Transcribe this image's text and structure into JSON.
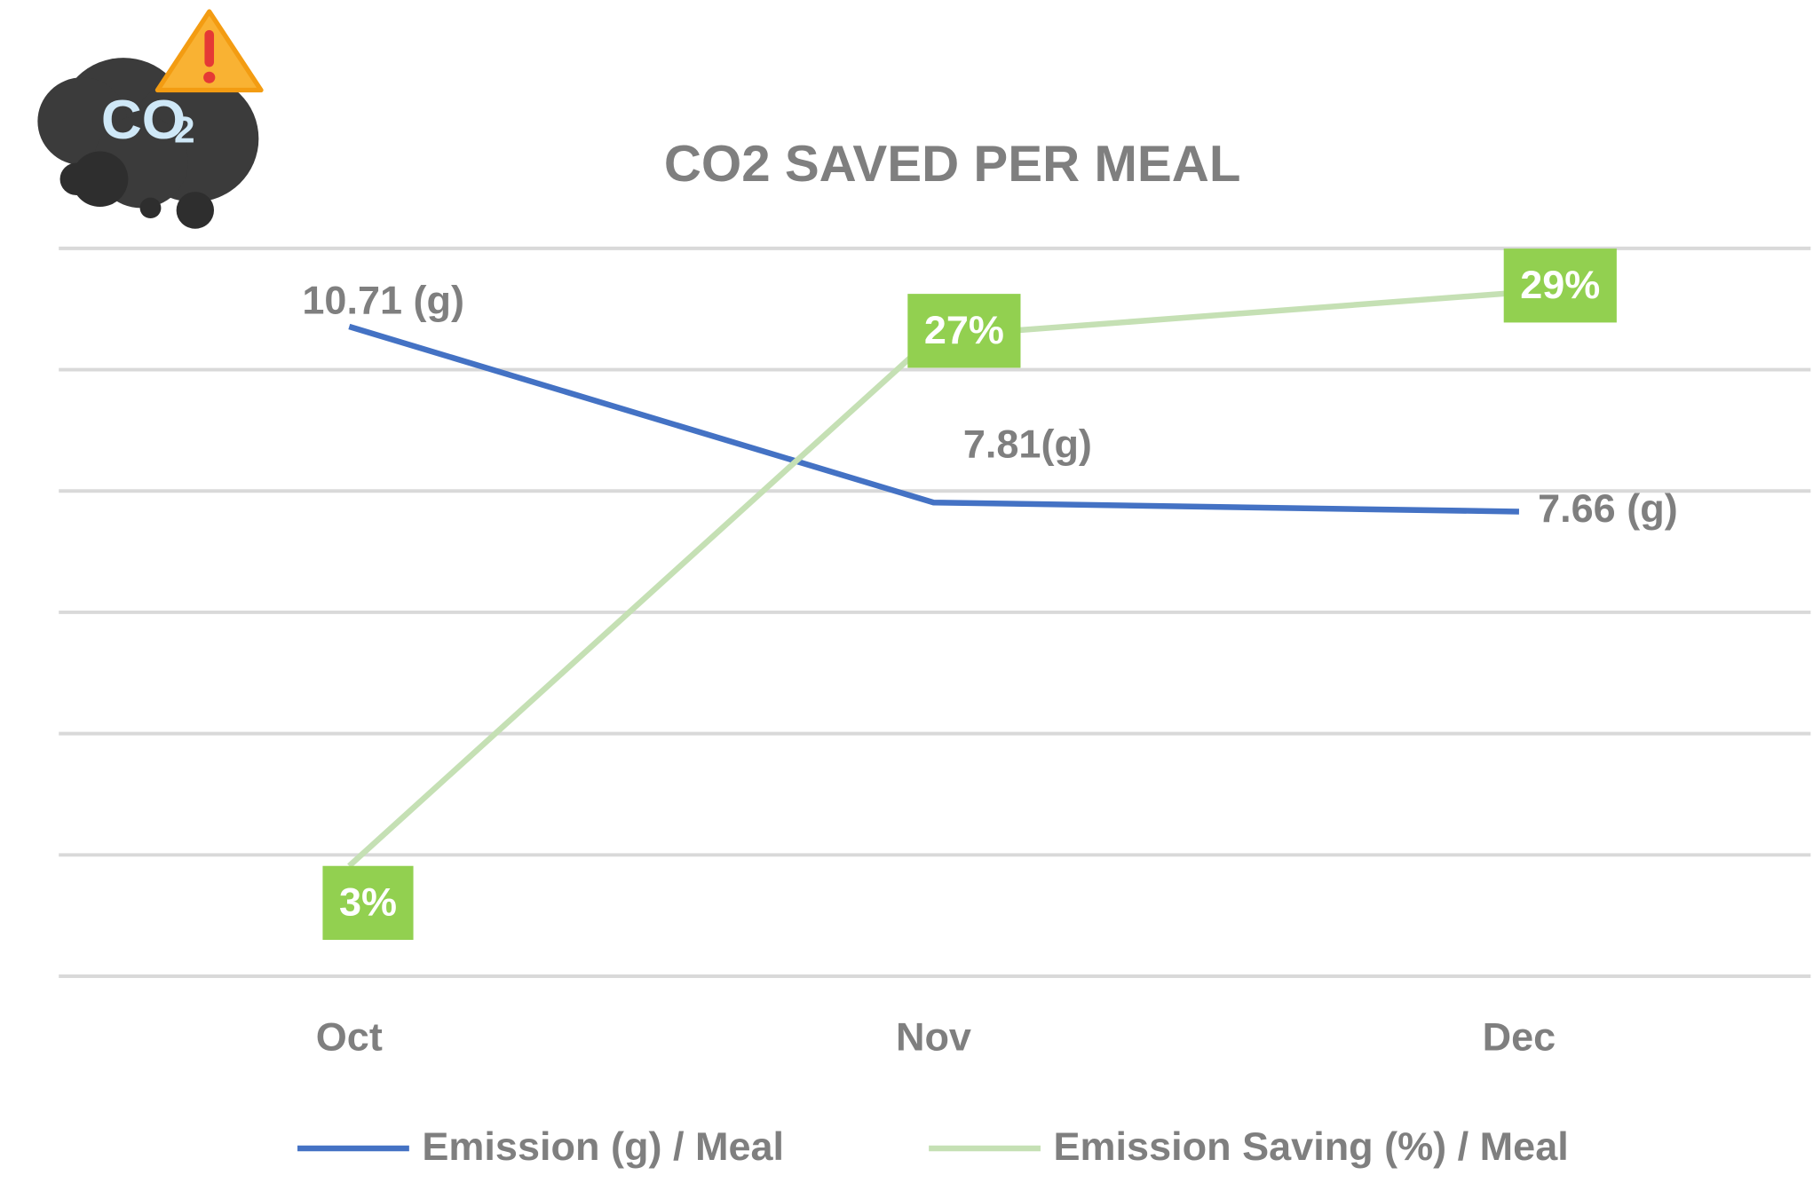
{
  "icon": {
    "label": "CO",
    "subscript": "2"
  },
  "chart_data": {
    "type": "line",
    "title": "CO2 SAVED PER MEAL",
    "categories": [
      "Oct",
      "Nov",
      "Dec"
    ],
    "ylim": [
      0,
      12
    ],
    "y2lim": [
      -2,
      31
    ],
    "grid": true,
    "legend": "bottom",
    "series": [
      {
        "name": "Emission (g) / Meal",
        "color": "#4472c4",
        "values": [
          10.71,
          7.81,
          7.66
        ],
        "value_labels": [
          "10.71 (g)",
          "7.81(g)",
          "7.66 (g)"
        ]
      },
      {
        "name": "Emission Saving (%) / Meal",
        "color": "#c5e0b4",
        "axis": "y2",
        "label_color": "#92d050",
        "values": [
          3,
          27,
          29
        ],
        "value_labels": [
          "3%",
          "27%",
          "29%"
        ]
      }
    ]
  }
}
